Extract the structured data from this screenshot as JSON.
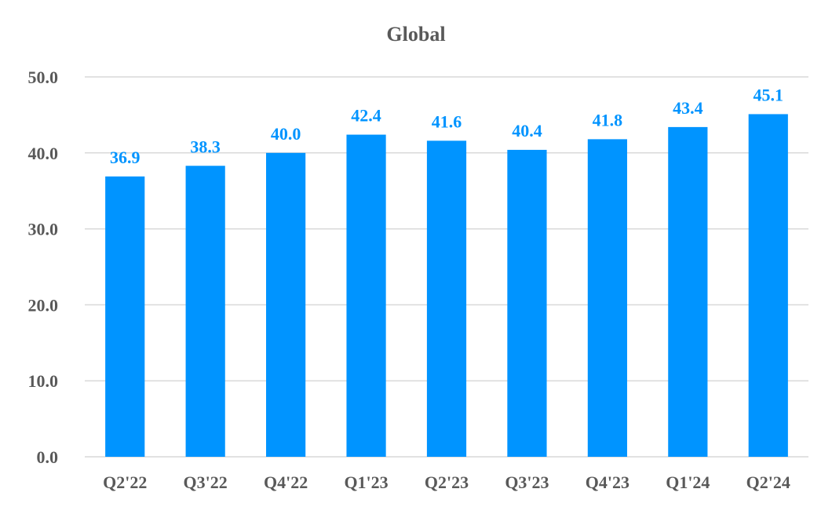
{
  "chart_data": {
    "type": "bar",
    "title": "Global",
    "xlabel": "",
    "ylabel": "",
    "categories": [
      "Q2'22",
      "Q3'22",
      "Q4'22",
      "Q1'23",
      "Q2'23",
      "Q3'23",
      "Q4'23",
      "Q1'24",
      "Q2'24"
    ],
    "values": [
      36.9,
      38.3,
      40.0,
      42.4,
      41.6,
      40.4,
      41.8,
      43.4,
      45.1
    ],
    "data_labels": [
      "36.9",
      "38.3",
      "40.0",
      "42.4",
      "41.6",
      "40.4",
      "41.8",
      "43.4",
      "45.1"
    ],
    "ylim": [
      0,
      50
    ],
    "yticks": [
      "0.0",
      "10.0",
      "20.0",
      "30.0",
      "40.0",
      "50.0"
    ],
    "grid": true,
    "legend": "none",
    "bar_color": "#0094FF",
    "label_color": "#0094FF"
  }
}
